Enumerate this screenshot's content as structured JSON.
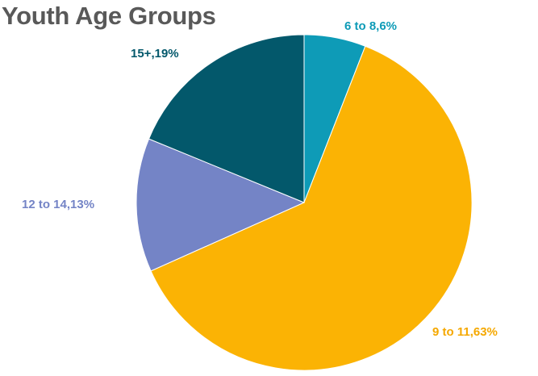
{
  "chart_data": {
    "type": "pie",
    "title": "Youth Age Groups",
    "slices": [
      {
        "category": "6 to 8",
        "value": 6,
        "label": "6 to 8,6%",
        "color": "#0E9BB7"
      },
      {
        "category": "9 to 11",
        "value": 63,
        "label": "9 to 11,63%",
        "color": "#FBB304"
      },
      {
        "category": "12 to 14",
        "value": 13,
        "label": "12 to 14,13%",
        "color": "#7484C6"
      },
      {
        "category": "15+",
        "value": 19,
        "label": "15+,19%",
        "color": "#03586B"
      }
    ],
    "start_angle_deg": 0,
    "direction": "clockwise",
    "legend": "none"
  }
}
